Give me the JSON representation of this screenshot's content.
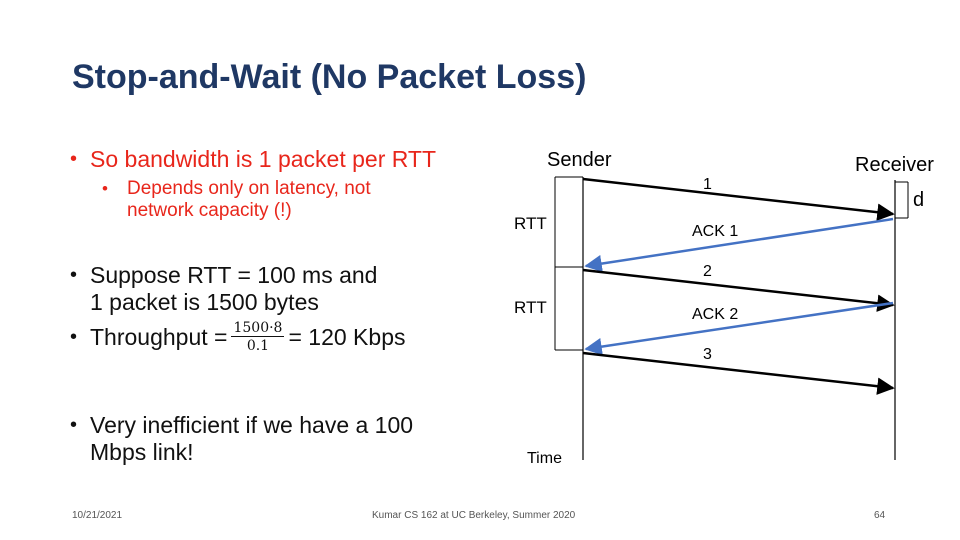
{
  "slide": {
    "title": "Stop-and-Wait (No Packet Loss)"
  },
  "bullets": {
    "b1": "So bandwidth is 1 packet per RTT",
    "b1_sub": [
      "Depends only on latency, not",
      "network capacity (!)"
    ],
    "b2": [
      "Suppose RTT = 100 ms and",
      "1 packet is 1500 bytes"
    ],
    "b3": {
      "prefix": "Throughput =",
      "numerator": "1500·8",
      "denominator": "0.1",
      "suffix": "= 120 Kbps"
    },
    "b4": [
      "Very inefficient if we have a 100",
      "Mbps link!"
    ]
  },
  "diagram": {
    "sender_label": "Sender",
    "receiver_label": "Receiver",
    "d_label": "d",
    "rtt_label_1": "RTT",
    "rtt_label_2": "RTT",
    "time_label": "Time",
    "packet_1": "1",
    "ack_1": "ACK 1",
    "packet_2": "2",
    "ack_2": "ACK 2",
    "packet_3": "3",
    "colors": {
      "data_arrow": "#000000",
      "ack_arrow": "#4472c4",
      "bullet_red": "#e8261b",
      "title": "#1f3864"
    }
  },
  "footer": {
    "date": "10/21/2021",
    "course": "Kumar CS 162 at UC Berkeley, Summer 2020",
    "page_number": "64"
  }
}
